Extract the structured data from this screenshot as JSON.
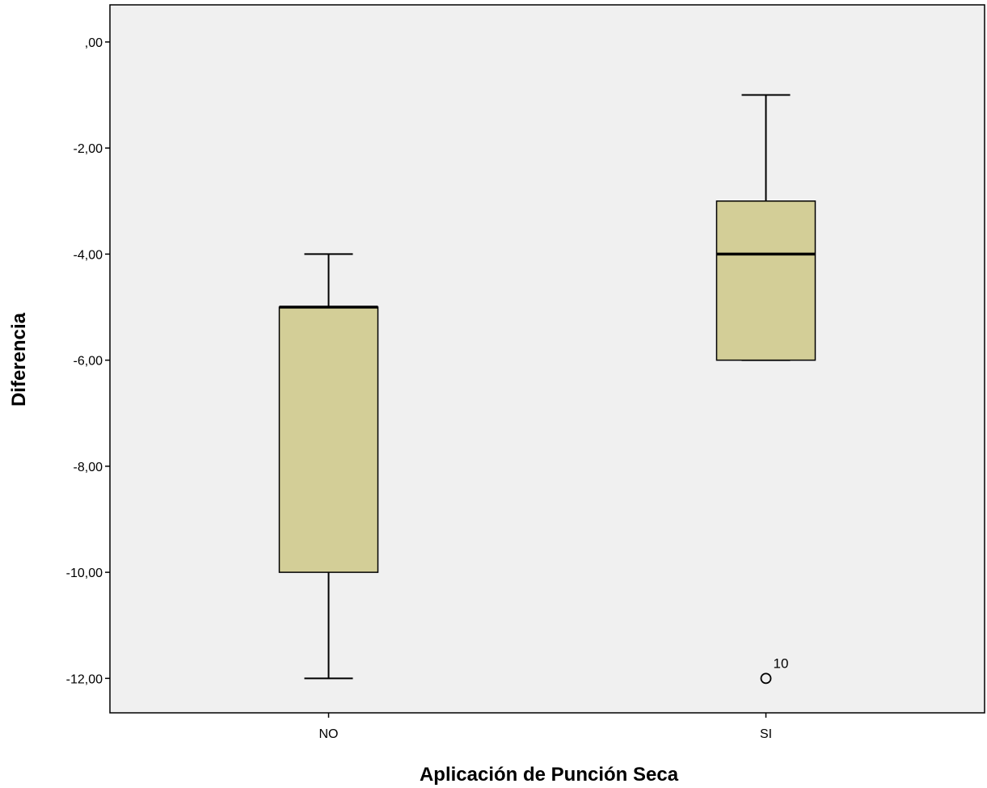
{
  "chart_data": {
    "type": "boxplot",
    "title": "",
    "xlabel": "Aplicación de Punción Seca",
    "ylabel": "Diferencia",
    "ylim": [
      -12.65,
      0.7
    ],
    "yticks": [
      0,
      -2,
      -4,
      -6,
      -8,
      -10,
      -12
    ],
    "ytick_labels": [
      ",00",
      "-2,00",
      "-4,00",
      "-6,00",
      "-8,00",
      "-10,00",
      "-12,00"
    ],
    "categories": [
      "NO",
      "SI"
    ],
    "boxes": [
      {
        "category": "NO",
        "whisker_low": -12,
        "q1": -10,
        "median": -5,
        "q3": -5,
        "whisker_high": -4,
        "outliers": []
      },
      {
        "category": "SI",
        "whisker_low": -6,
        "q1": -6,
        "median": -4,
        "q3": -3,
        "whisker_high": -1,
        "outliers": [
          {
            "value": -12,
            "label": "10"
          }
        ]
      }
    ],
    "grid": false,
    "colors": {
      "plot_background": "#f0f0f0",
      "box_fill": "#d3ce97",
      "stroke": "#000000"
    }
  }
}
